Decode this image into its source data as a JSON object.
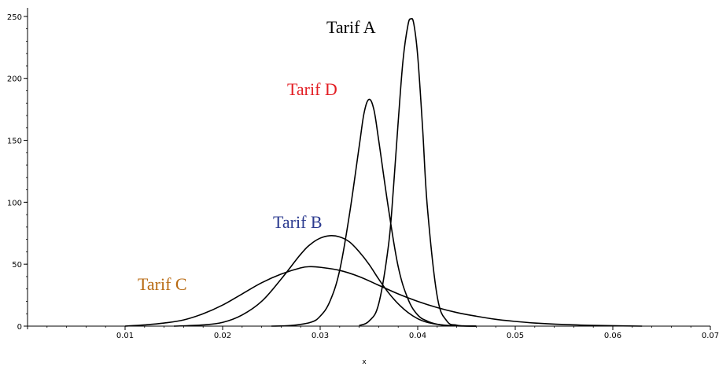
{
  "chart_data": {
    "type": "line",
    "xlabel": "x",
    "ylabel": "",
    "xlim": [
      0,
      0.07
    ],
    "ylim": [
      0,
      255
    ],
    "xticks": [
      0.01,
      0.02,
      0.03,
      0.04,
      0.05,
      0.06,
      0.07
    ],
    "xtick_labels": [
      "0.01",
      "0.02",
      "0.03",
      "0.04",
      "0.05",
      "0.06",
      "0.07"
    ],
    "yticks": [
      0,
      50,
      100,
      150,
      200,
      250
    ],
    "ytick_labels": [
      "0",
      "50",
      "100",
      "150",
      "200",
      "250"
    ],
    "grid": false,
    "series": [
      {
        "name": "Tarif A",
        "color": "#000000",
        "label_color": "#000000",
        "x": [
          0.034,
          0.035,
          0.036,
          0.037,
          0.0375,
          0.038,
          0.0385,
          0.039,
          0.0393,
          0.0396,
          0.04,
          0.0405,
          0.041,
          0.042,
          0.043,
          0.044,
          0.045,
          0.046
        ],
        "y": [
          0.5,
          4,
          18,
          65,
          110,
          165,
          215,
          243,
          248,
          244,
          218,
          160,
          95,
          24,
          4,
          0.8,
          0.1,
          0
        ]
      },
      {
        "name": "Tarif D",
        "color": "#000000",
        "label_color": "#e31e24",
        "x": [
          0.025,
          0.027,
          0.029,
          0.03,
          0.031,
          0.032,
          0.033,
          0.034,
          0.0345,
          0.035,
          0.0355,
          0.036,
          0.037,
          0.038,
          0.039,
          0.04,
          0.041,
          0.042,
          0.043,
          0.044,
          0.046
        ],
        "y": [
          0,
          0.5,
          3,
          8,
          20,
          45,
          90,
          145,
          172,
          183,
          175,
          150,
          95,
          48,
          22,
          9,
          4,
          1.5,
          0.5,
          0.2,
          0
        ]
      },
      {
        "name": "Tarif B",
        "color": "#000000",
        "label_color": "#2b3a8f",
        "x": [
          0.015,
          0.018,
          0.02,
          0.022,
          0.024,
          0.026,
          0.028,
          0.029,
          0.03,
          0.031,
          0.032,
          0.033,
          0.034,
          0.035,
          0.036,
          0.037,
          0.038,
          0.039,
          0.04,
          0.041,
          0.042,
          0.043,
          0.044,
          0.046
        ],
        "y": [
          0,
          1,
          3,
          9,
          20,
          38,
          58,
          66,
          71,
          73,
          72,
          68,
          60,
          50,
          38,
          27,
          18,
          11,
          6,
          3,
          1.5,
          0.6,
          0.2,
          0
        ],
        "note": "peak ~0.031"
      },
      {
        "name": "Tarif C",
        "color": "#000000",
        "label_color": "#b86a12",
        "x": [
          0.01,
          0.012,
          0.014,
          0.016,
          0.018,
          0.02,
          0.022,
          0.024,
          0.026,
          0.028,
          0.029,
          0.03,
          0.032,
          0.034,
          0.036,
          0.038,
          0.04,
          0.042,
          0.044,
          0.046,
          0.048,
          0.05,
          0.052,
          0.055,
          0.058,
          0.061,
          0.063
        ],
        "y": [
          0,
          1,
          2.5,
          5,
          10,
          17,
          26,
          35,
          42,
          47,
          48,
          47.5,
          45,
          40,
          33,
          26,
          20,
          15,
          11,
          8,
          5.5,
          3.8,
          2.5,
          1.3,
          0.6,
          0.2,
          0
        ]
      }
    ]
  },
  "labels": {
    "tarif_a": "Tarif A",
    "tarif_d": "Tarif D",
    "tarif_b": "Tarif B",
    "tarif_c": "Tarif C"
  }
}
